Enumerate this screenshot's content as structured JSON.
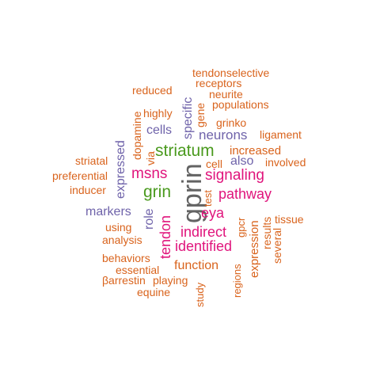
{
  "palette": {
    "gray": "#636363",
    "green": "#4a9a1e",
    "magenta": "#e0147c",
    "purple": "#6f63aa",
    "orange": "#d9631c"
  },
  "words": [
    {
      "text": "gprin",
      "color": "gray"
    },
    {
      "text": "striatum",
      "color": "green"
    },
    {
      "text": "grin",
      "color": "green"
    },
    {
      "text": "msns",
      "color": "magenta"
    },
    {
      "text": "signaling",
      "color": "magenta"
    },
    {
      "text": "pathway",
      "color": "magenta"
    },
    {
      "text": "eya",
      "color": "magenta"
    },
    {
      "text": "indirect",
      "color": "magenta"
    },
    {
      "text": "identified",
      "color": "magenta"
    },
    {
      "text": "tendon",
      "color": "magenta"
    },
    {
      "text": "neurons",
      "color": "purple"
    },
    {
      "text": "cells",
      "color": "purple"
    },
    {
      "text": "also",
      "color": "purple"
    },
    {
      "text": "markers",
      "color": "purple"
    },
    {
      "text": "expressed",
      "color": "purple"
    },
    {
      "text": "specific",
      "color": "purple"
    },
    {
      "text": "role",
      "color": "purple"
    },
    {
      "text": "tendonselective",
      "color": "orange"
    },
    {
      "text": "receptors",
      "color": "orange"
    },
    {
      "text": "neurite",
      "color": "orange"
    },
    {
      "text": "populations",
      "color": "orange"
    },
    {
      "text": "reduced",
      "color": "orange"
    },
    {
      "text": "highly",
      "color": "orange"
    },
    {
      "text": "gene",
      "color": "orange"
    },
    {
      "text": "grinko",
      "color": "orange"
    },
    {
      "text": "ligament",
      "color": "orange"
    },
    {
      "text": "dopamine",
      "color": "orange"
    },
    {
      "text": "increased",
      "color": "orange"
    },
    {
      "text": "via",
      "color": "orange"
    },
    {
      "text": "involved",
      "color": "orange"
    },
    {
      "text": "cell",
      "color": "orange"
    },
    {
      "text": "striatal",
      "color": "orange"
    },
    {
      "text": "preferential",
      "color": "orange"
    },
    {
      "text": "inducer",
      "color": "orange"
    },
    {
      "text": "test",
      "color": "orange"
    },
    {
      "text": "using",
      "color": "orange"
    },
    {
      "text": "tissue",
      "color": "orange"
    },
    {
      "text": "analysis",
      "color": "orange"
    },
    {
      "text": "gpcr",
      "color": "orange"
    },
    {
      "text": "results",
      "color": "orange"
    },
    {
      "text": "behaviors",
      "color": "orange"
    },
    {
      "text": "function",
      "color": "orange"
    },
    {
      "text": "several",
      "color": "orange"
    },
    {
      "text": "expression",
      "color": "orange"
    },
    {
      "text": "essential",
      "color": "orange"
    },
    {
      "text": "βarrestin",
      "color": "orange"
    },
    {
      "text": "playing",
      "color": "orange"
    },
    {
      "text": "equine",
      "color": "orange"
    },
    {
      "text": "regions",
      "color": "orange"
    },
    {
      "text": "study",
      "color": "orange"
    }
  ]
}
